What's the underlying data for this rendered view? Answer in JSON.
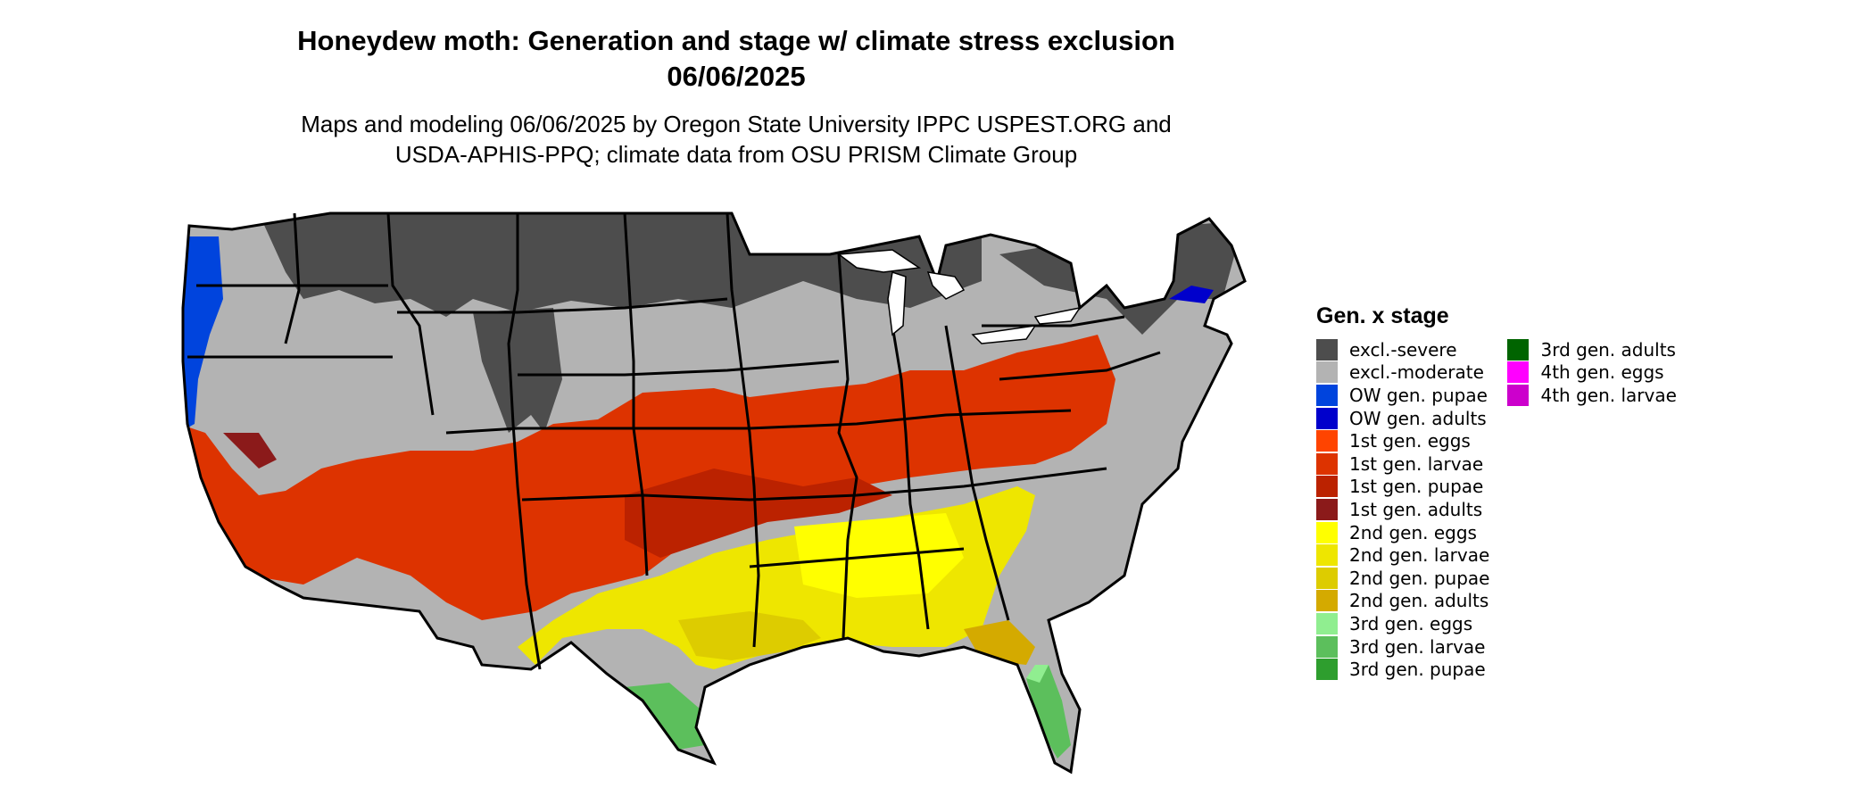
{
  "title": {
    "line1": "Honeydew moth: Generation and stage w/ climate stress exclusion",
    "line2": "06/06/2025"
  },
  "subtitle": {
    "line1": "Maps and modeling 06/06/2025 by Oregon State University IPPC USPEST.ORG and",
    "line2": "USDA-APHIS-PPQ; climate data from OSU PRISM Climate Group"
  },
  "legend": {
    "title": "Gen. x stage",
    "items": [
      {
        "label": "excl.-severe",
        "color": "#4d4d4d"
      },
      {
        "label": "excl.-moderate",
        "color": "#b3b3b3"
      },
      {
        "label": "OW gen. pupae",
        "color": "#0044dd"
      },
      {
        "label": "OW gen. adults",
        "color": "#0000cc"
      },
      {
        "label": "1st gen. eggs",
        "color": "#ff4400"
      },
      {
        "label": "1st gen. larvae",
        "color": "#dd3300"
      },
      {
        "label": "1st gen. pupae",
        "color": "#bb2200"
      },
      {
        "label": "1st gen. adults",
        "color": "#8b1a1a"
      },
      {
        "label": "2nd gen. eggs",
        "color": "#ffff00"
      },
      {
        "label": "2nd gen. larvae",
        "color": "#eee600"
      },
      {
        "label": "2nd gen. pupae",
        "color": "#ddcc00"
      },
      {
        "label": "2nd gen. adults",
        "color": "#d4aa00"
      },
      {
        "label": "3rd gen. eggs",
        "color": "#90ee90"
      },
      {
        "label": "3rd gen. larvae",
        "color": "#5cbf5c"
      },
      {
        "label": "3rd gen. pupae",
        "color": "#2e9e2e"
      },
      {
        "label": "3rd gen. adults",
        "color": "#006400"
      },
      {
        "label": "4th gen. eggs",
        "color": "#ff00ff"
      },
      {
        "label": "4th gen. larvae",
        "color": "#cc00cc"
      }
    ]
  }
}
